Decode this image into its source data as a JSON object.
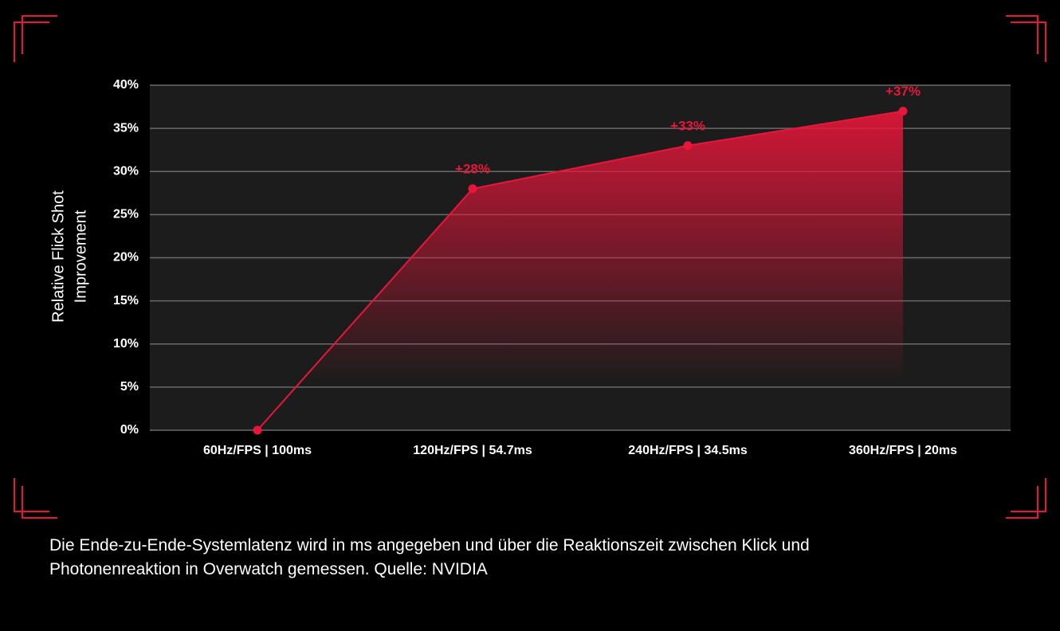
{
  "chart_data": {
    "type": "area",
    "y_label": [
      "Relative Flick Shot",
      "Improvement"
    ],
    "categories": [
      "60Hz/FPS | 100ms",
      "120Hz/FPS | 54.7ms",
      "240Hz/FPS | 34.5ms",
      "360Hz/FPS | 20ms"
    ],
    "values": [
      0,
      28,
      33,
      37
    ],
    "value_labels": [
      null,
      "+28%",
      "+33%",
      "+37%"
    ],
    "color": "#e8163a",
    "ylim": [
      0,
      40
    ],
    "yticks": [
      {
        "value": 0,
        "label": "0%"
      },
      {
        "value": 5,
        "label": "5%"
      },
      {
        "value": 10,
        "label": "10%"
      },
      {
        "value": 15,
        "label": "15%"
      },
      {
        "value": 20,
        "label": "20%"
      },
      {
        "value": 25,
        "label": "25%"
      },
      {
        "value": 30,
        "label": "30%"
      },
      {
        "value": 35,
        "label": "35%"
      },
      {
        "value": 40,
        "label": "40%"
      }
    ],
    "grid": true
  },
  "caption": [
    "Die Ende-zu-Ende-Systemlatenz wird in ms angegeben und über die Reaktionszeit zwischen Klick und",
    "Photonenreaktion in Overwatch gemessen. Quelle: NVIDIA"
  ]
}
